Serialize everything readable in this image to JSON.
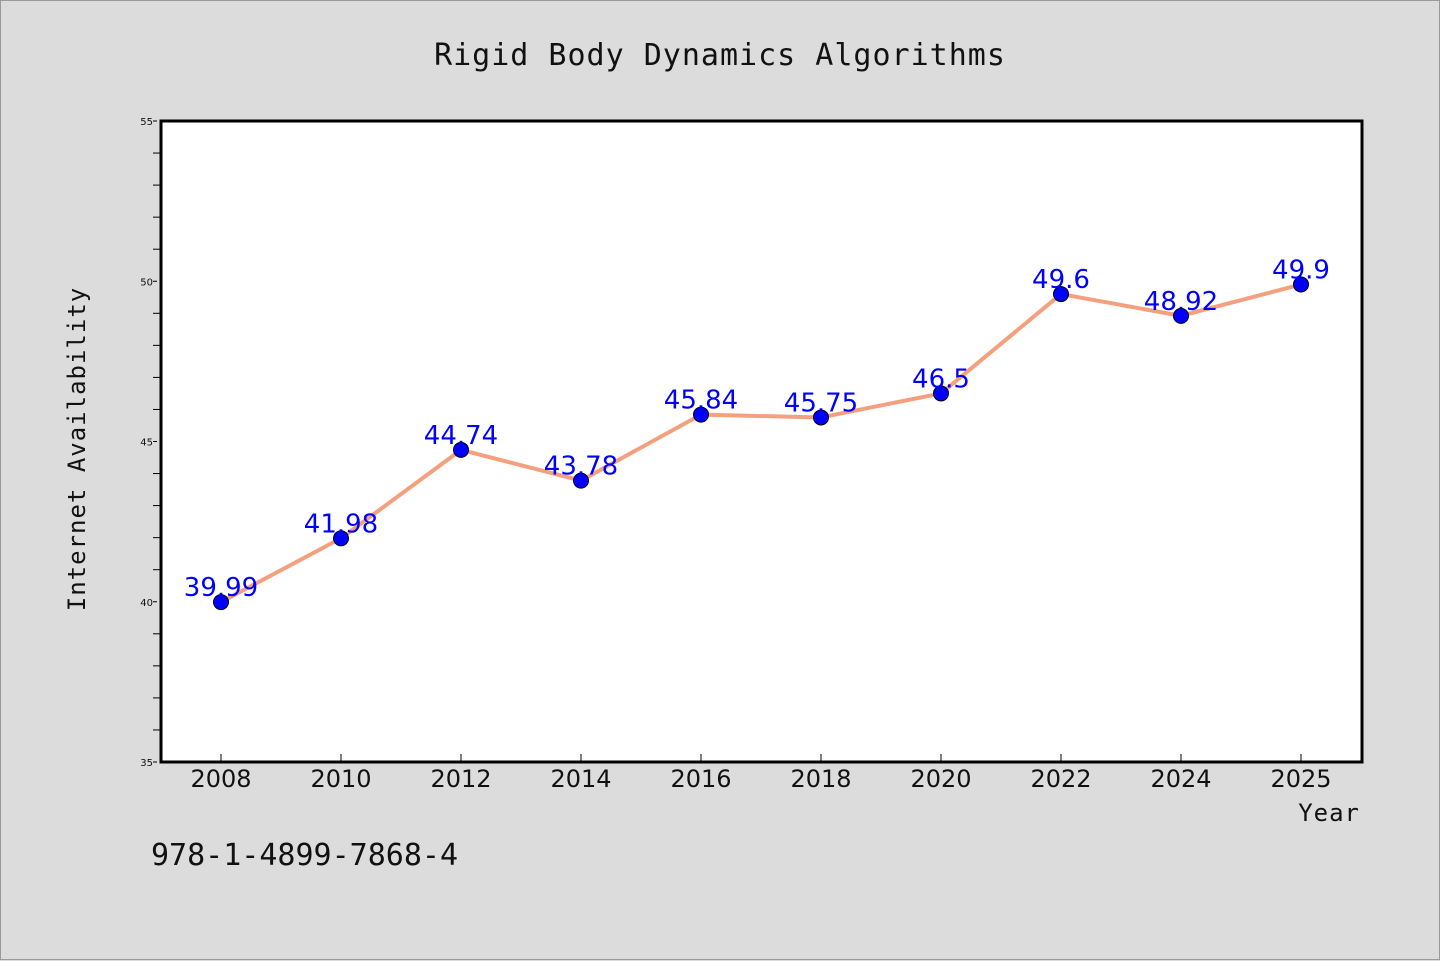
{
  "chart_data": {
    "type": "line",
    "title": "Rigid Body Dynamics Algorithms",
    "xlabel": "Year",
    "ylabel": "Internet Availability",
    "categories": [
      "2008",
      "2010",
      "2012",
      "2014",
      "2016",
      "2018",
      "2020",
      "2022",
      "2024",
      "2025"
    ],
    "series": [
      {
        "values": [
          39.99,
          41.98,
          44.74,
          43.78,
          45.84,
          45.75,
          46.5,
          49.6,
          48.92,
          49.9
        ],
        "labels": [
          "39.99",
          "41.98",
          "44.74",
          "43.78",
          "45.84",
          "45.75",
          "46.5",
          "49.6",
          "48.92",
          "49.9"
        ],
        "line_color": "#f4a07e",
        "marker_color": "#0000ff"
      }
    ],
    "ylim": [
      35,
      55
    ],
    "yticks": [
      "35",
      "40",
      "45",
      "50",
      "55"
    ],
    "grid": false,
    "legend": "none",
    "label_color": "#0000ff"
  },
  "footer": {
    "isbn": "978-1-4899-7868-4"
  }
}
